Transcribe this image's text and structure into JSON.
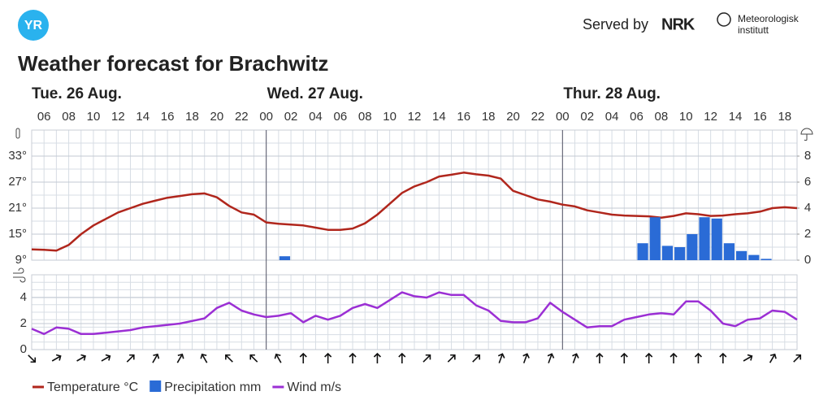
{
  "header": {
    "logo": "YR",
    "served_by": "Served by",
    "nrk": "NRK",
    "met": [
      "Meteorologisk",
      "institutt"
    ]
  },
  "chart_data": {
    "type": "line",
    "title": "Weather forecast for Brachwitz",
    "days": [
      "Tue. 26 Aug.",
      "Wed. 27 Aug.",
      "Thur. 28 Aug."
    ],
    "categories": [
      null,
      "06",
      null,
      "08",
      null,
      "10",
      null,
      "12",
      null,
      "14",
      null,
      "16",
      null,
      "18",
      null,
      "20",
      null,
      "22",
      null,
      "00",
      null,
      "02",
      null,
      "04",
      null,
      "06",
      null,
      "08",
      null,
      "10",
      null,
      "12",
      null,
      "14",
      null,
      "16",
      null,
      "18",
      null,
      "20",
      null,
      "22",
      null,
      "00",
      null,
      "02",
      null,
      "04",
      null,
      "06",
      null,
      "08",
      null,
      "10",
      null,
      "12",
      null,
      "14",
      null,
      "16",
      null,
      "18",
      null
    ],
    "series": [
      {
        "name": "Temperature °C",
        "color": "#b0261c",
        "values": [
          11.5,
          11.4,
          11.2,
          12.5,
          15,
          17,
          18.5,
          20,
          21,
          22,
          22.7,
          23.4,
          23.8,
          24.2,
          24.4,
          23.5,
          21.5,
          20,
          19.5,
          17.7,
          17.4,
          17.2,
          17,
          16.5,
          16,
          16,
          16.3,
          17.5,
          19.5,
          22,
          24.5,
          26,
          27,
          28.3,
          28.7,
          29.2,
          28.8,
          28.5,
          27.8,
          25,
          24,
          23,
          22.5,
          21.8,
          21.4,
          20.5,
          20,
          19.5,
          19.3,
          19.2,
          19.1,
          18.8,
          19.2,
          19.8,
          19.6,
          19.2,
          19.3,
          19.6,
          19.8,
          20.2,
          21,
          21.2,
          21
        ]
      },
      {
        "name": "Precipitation mm",
        "color": "#2a6bd6",
        "axis": "y2",
        "values": [
          0,
          0,
          0,
          0,
          0,
          0,
          0,
          0,
          0,
          0,
          0,
          0,
          0,
          0,
          0,
          0,
          0,
          0,
          0,
          0,
          0.3,
          0,
          0,
          0,
          0,
          0,
          0,
          0,
          0,
          0,
          0,
          0,
          0,
          0,
          0,
          0,
          0,
          0,
          0,
          0,
          0,
          0,
          0,
          0,
          0,
          0,
          0,
          0,
          0,
          1.3,
          3.3,
          1.1,
          1.0,
          2.0,
          3.3,
          3.2,
          1.3,
          0.7,
          0.4,
          0.1,
          0,
          0,
          0
        ]
      },
      {
        "name": "Wind m/s",
        "color": "#9b2fd4",
        "axis": "y3",
        "values": [
          1.6,
          1.2,
          1.7,
          1.6,
          1.2,
          1.2,
          1.3,
          1.4,
          1.5,
          1.7,
          1.8,
          1.9,
          2.0,
          2.2,
          2.4,
          3.2,
          3.6,
          3.0,
          2.7,
          2.5,
          2.6,
          2.8,
          2.1,
          2.6,
          2.3,
          2.6,
          3.2,
          3.5,
          3.2,
          3.8,
          4.4,
          4.1,
          4.0,
          4.4,
          4.2,
          4.2,
          3.4,
          3.0,
          2.2,
          2.1,
          2.1,
          2.4,
          3.6,
          2.9,
          2.3,
          1.7,
          1.8,
          1.8,
          2.3,
          2.5,
          2.7,
          2.8,
          2.7,
          3.7,
          3.7,
          3.0,
          2.0,
          1.8,
          2.3,
          2.4,
          3.0,
          2.9,
          2.3
        ]
      }
    ],
    "wind_direction": [
      135,
      60,
      60,
      60,
      45,
      30,
      30,
      -30,
      -45,
      -45,
      -30,
      0,
      0,
      0,
      0,
      0,
      45,
      45,
      45,
      20,
      20,
      20,
      20,
      0,
      0,
      0,
      0,
      0,
      0,
      60,
      30,
      45
    ],
    "ylim": [
      9,
      39
    ],
    "yticks": [
      {
        "value": 9,
        "label": "9°"
      },
      {
        "value": 15,
        "label": "15°"
      },
      {
        "value": 21,
        "label": "21°"
      },
      {
        "value": 27,
        "label": "27°"
      },
      {
        "value": 33,
        "label": "33°"
      }
    ],
    "y2lim": [
      0,
      10
    ],
    "y2ticks": [
      0,
      2,
      4,
      6,
      8
    ],
    "y3lim": [
      0,
      5.75
    ],
    "y3ticks": [
      0,
      2,
      4
    ],
    "grid": true
  }
}
